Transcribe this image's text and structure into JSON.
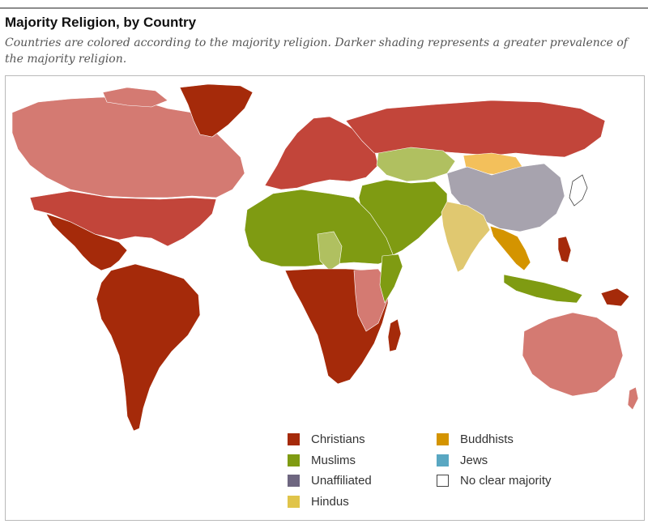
{
  "header": {
    "title": "Majority Religion, by Country",
    "subtitle": "Countries are colored according to the majority religion. Darker shading represents a greater prevalence of the majority religion."
  },
  "legend": {
    "left_column": [
      {
        "label": "Christians",
        "color": "#a52a0a"
      },
      {
        "label": "Muslims",
        "color": "#7f9b12"
      },
      {
        "label": "Unaffiliated",
        "color": "#6e6680"
      },
      {
        "label": "Hindus",
        "color": "#e0c44a"
      }
    ],
    "right_column": [
      {
        "label": "Buddhists",
        "color": "#d49400"
      },
      {
        "label": "Jews",
        "color": "#59a7c2"
      },
      {
        "label": "No clear majority",
        "color": "#ffffff"
      }
    ]
  },
  "palette": {
    "christian_dark": "#a52a0a",
    "christian_mid": "#c2453a",
    "christian_light": "#d47a72",
    "muslim_dark": "#7f9b12",
    "muslim_light": "#b0c060",
    "unaffiliated": "#a7a3ae",
    "unaffiliated_dark": "#6e6680",
    "hindu": "#e0c870",
    "buddhist_light": "#f3c05b",
    "buddhist_dark": "#d49400",
    "jews": "#59a7c2",
    "no_majority": "#ffffff"
  }
}
